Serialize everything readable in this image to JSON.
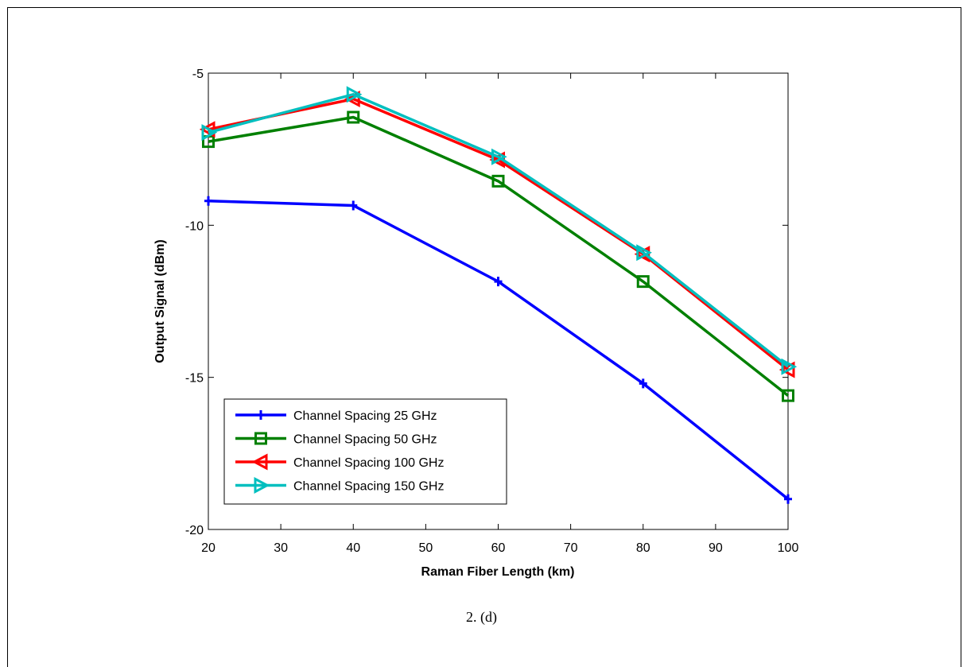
{
  "caption": "2. (d)",
  "chart_data": {
    "type": "line",
    "xlabel": "Raman Fiber Length (km)",
    "ylabel": "Output Signal (dBm)",
    "xlim": [
      20,
      100
    ],
    "ylim": [
      -20,
      -5
    ],
    "xticks": [
      20,
      30,
      40,
      50,
      60,
      70,
      80,
      90,
      100
    ],
    "yticks": [
      -20,
      -15,
      -10,
      -5
    ],
    "grid": false,
    "legend_position": "bottom-left",
    "x": [
      20,
      40,
      60,
      80,
      100
    ],
    "series": [
      {
        "name": "Channel Spacing 25 GHz",
        "color": "#0000ff",
        "marker": "plus",
        "values": [
          -9.2,
          -9.35,
          -11.85,
          -15.2,
          -19.0
        ]
      },
      {
        "name": "Channel Spacing 50 GHz",
        "color": "#008000",
        "marker": "square",
        "values": [
          -7.25,
          -6.45,
          -8.55,
          -11.85,
          -15.6
        ]
      },
      {
        "name": "Channel Spacing 100 GHz",
        "color": "#ff0000",
        "marker": "triangle-left",
        "values": [
          -6.85,
          -5.85,
          -7.85,
          -10.95,
          -14.75
        ]
      },
      {
        "name": "Channel Spacing 150 GHz",
        "color": "#00bfbf",
        "marker": "triangle-right",
        "values": [
          -6.95,
          -5.7,
          -7.75,
          -10.9,
          -14.65
        ]
      }
    ]
  }
}
